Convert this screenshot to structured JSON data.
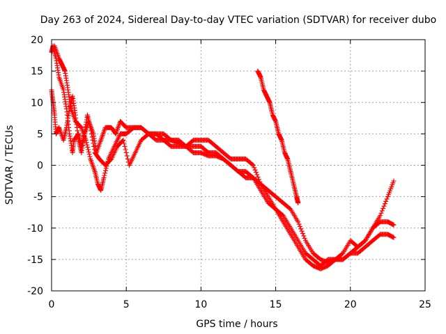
{
  "chart_data": {
    "type": "scatter",
    "title": "Day 263 of 2024, Sidereal Day-to-day VTEC variation (SDTVAR) for receiver dubo",
    "xlabel": "GPS time / hours",
    "ylabel": "SDTVAR / TECUs",
    "xlim": [
      0,
      25
    ],
    "ylim": [
      -20,
      20
    ],
    "xticks": [
      0,
      5,
      10,
      15,
      20,
      25
    ],
    "yticks": [
      -20,
      -15,
      -10,
      -5,
      0,
      5,
      10,
      15,
      20
    ],
    "grid": true,
    "marker": "plus",
    "color": "#ff0000",
    "series": [
      {
        "name": "arc-main",
        "points": [
          [
            0.0,
            18
          ],
          [
            0.1,
            19
          ],
          [
            0.3,
            17
          ],
          [
            0.5,
            14
          ],
          [
            0.8,
            12
          ],
          [
            1.0,
            9
          ],
          [
            1.2,
            5
          ],
          [
            1.4,
            2
          ],
          [
            1.5,
            4
          ],
          [
            1.8,
            5
          ],
          [
            2.0,
            3
          ],
          [
            2.2,
            5
          ],
          [
            2.5,
            7
          ],
          [
            2.8,
            5
          ],
          [
            3.0,
            2
          ],
          [
            3.3,
            4
          ],
          [
            3.6,
            6
          ],
          [
            4.0,
            6
          ],
          [
            4.3,
            5
          ],
          [
            4.6,
            7
          ],
          [
            5.0,
            6
          ],
          [
            5.5,
            6
          ],
          [
            6.0,
            6
          ],
          [
            6.5,
            5
          ],
          [
            7.0,
            5
          ],
          [
            7.5,
            5
          ],
          [
            8.0,
            4
          ],
          [
            8.5,
            4
          ],
          [
            9.0,
            3
          ],
          [
            9.5,
            3
          ],
          [
            10.0,
            3
          ],
          [
            10.5,
            2
          ],
          [
            11.0,
            2
          ],
          [
            11.5,
            1
          ],
          [
            12.0,
            0
          ],
          [
            12.5,
            -1
          ],
          [
            13.0,
            -1
          ],
          [
            13.5,
            -2
          ],
          [
            14.0,
            -4
          ],
          [
            14.5,
            -6
          ],
          [
            15.0,
            -7
          ],
          [
            15.5,
            -8
          ],
          [
            16.0,
            -10
          ],
          [
            16.5,
            -12
          ],
          [
            17.0,
            -14
          ],
          [
            17.5,
            -15
          ],
          [
            18.0,
            -16
          ],
          [
            18.5,
            -15
          ],
          [
            19.0,
            -15
          ],
          [
            19.5,
            -15
          ],
          [
            20.0,
            -14
          ],
          [
            20.5,
            -13
          ],
          [
            21.0,
            -12
          ],
          [
            21.5,
            -10
          ],
          [
            22.0,
            -9
          ],
          [
            22.5,
            -9
          ],
          [
            22.9,
            -9.5
          ]
        ]
      },
      {
        "name": "arc-upper",
        "points": [
          [
            0.2,
            19
          ],
          [
            0.5,
            17
          ],
          [
            0.7,
            16
          ],
          [
            0.9,
            15
          ],
          [
            1.1,
            12
          ],
          [
            1.3,
            9
          ],
          [
            1.6,
            7
          ],
          [
            2.0,
            6
          ],
          [
            2.3,
            4
          ],
          [
            2.6,
            1
          ],
          [
            2.9,
            -1
          ],
          [
            3.1,
            -3
          ],
          [
            3.3,
            -4
          ],
          [
            3.5,
            -2
          ],
          [
            3.8,
            1
          ],
          [
            4.2,
            3
          ],
          [
            4.6,
            5
          ],
          [
            5.0,
            5
          ],
          [
            5.5,
            6
          ],
          [
            6.0,
            6
          ],
          [
            6.5,
            5
          ],
          [
            7.0,
            5
          ],
          [
            7.5,
            4
          ],
          [
            8.0,
            4
          ],
          [
            8.5,
            3.5
          ],
          [
            9.0,
            3
          ],
          [
            9.5,
            4
          ],
          [
            10.0,
            4
          ],
          [
            10.5,
            4
          ],
          [
            11.0,
            3
          ],
          [
            11.5,
            2
          ],
          [
            12.0,
            1
          ],
          [
            12.5,
            1
          ],
          [
            13.0,
            1
          ],
          [
            13.5,
            0
          ],
          [
            14.0,
            -3
          ],
          [
            14.5,
            -4
          ],
          [
            15.0,
            -5
          ],
          [
            15.5,
            -6
          ],
          [
            16.0,
            -7
          ],
          [
            16.5,
            -9
          ],
          [
            17.0,
            -12
          ],
          [
            17.5,
            -14
          ],
          [
            18.0,
            -15
          ],
          [
            18.5,
            -15.5
          ],
          [
            19.0,
            -15
          ],
          [
            19.5,
            -14
          ],
          [
            20.0,
            -12
          ],
          [
            20.5,
            -13
          ],
          [
            21.0,
            -12
          ],
          [
            21.5,
            -10
          ],
          [
            22.0,
            -8
          ],
          [
            22.5,
            -5
          ],
          [
            22.9,
            -2.5
          ]
        ]
      },
      {
        "name": "arc-lower",
        "points": [
          [
            0.0,
            12
          ],
          [
            0.1,
            10
          ],
          [
            0.2,
            8
          ],
          [
            0.3,
            5
          ],
          [
            0.5,
            6
          ],
          [
            0.8,
            4
          ],
          [
            1.0,
            6
          ],
          [
            1.2,
            9
          ],
          [
            1.4,
            11
          ],
          [
            1.6,
            8
          ],
          [
            1.8,
            4
          ],
          [
            2.0,
            2
          ],
          [
            2.2,
            5
          ],
          [
            2.4,
            8
          ],
          [
            2.6,
            6
          ],
          [
            2.9,
            2
          ],
          [
            3.2,
            1
          ],
          [
            3.6,
            0
          ],
          [
            4.0,
            1
          ],
          [
            4.4,
            3
          ],
          [
            4.8,
            4
          ],
          [
            5.2,
            0
          ],
          [
            5.6,
            2
          ],
          [
            6.0,
            4
          ],
          [
            6.5,
            5
          ],
          [
            7.0,
            4
          ],
          [
            7.5,
            4
          ],
          [
            8.0,
            3
          ],
          [
            8.5,
            3
          ],
          [
            9.0,
            3
          ],
          [
            9.5,
            2
          ],
          [
            10.0,
            2
          ],
          [
            10.5,
            1.5
          ],
          [
            11.0,
            1.5
          ],
          [
            11.5,
            1
          ],
          [
            12.0,
            0
          ],
          [
            12.5,
            -1
          ],
          [
            13.0,
            -2
          ],
          [
            13.5,
            -2
          ],
          [
            14.0,
            -3
          ],
          [
            14.5,
            -5
          ],
          [
            15.0,
            -7
          ],
          [
            15.5,
            -9
          ],
          [
            16.0,
            -11
          ],
          [
            16.5,
            -13
          ],
          [
            17.0,
            -15
          ],
          [
            17.5,
            -16
          ],
          [
            18.0,
            -16.5
          ],
          [
            18.5,
            -16
          ],
          [
            19.0,
            -15
          ],
          [
            19.5,
            -15
          ],
          [
            20.0,
            -14
          ],
          [
            20.5,
            -14
          ],
          [
            21.0,
            -13
          ],
          [
            21.5,
            -12
          ],
          [
            22.0,
            -11
          ],
          [
            22.5,
            -11
          ],
          [
            22.9,
            -11.5
          ]
        ]
      },
      {
        "name": "arc-steep",
        "points": [
          [
            13.8,
            15
          ],
          [
            14.0,
            14
          ],
          [
            14.2,
            12
          ],
          [
            14.4,
            11
          ],
          [
            14.6,
            10
          ],
          [
            14.8,
            8
          ],
          [
            15.0,
            7
          ],
          [
            15.2,
            5
          ],
          [
            15.4,
            4
          ],
          [
            15.6,
            2
          ],
          [
            15.8,
            1
          ],
          [
            16.0,
            -1
          ],
          [
            16.2,
            -3
          ],
          [
            16.4,
            -5
          ],
          [
            16.5,
            -6
          ]
        ]
      }
    ]
  }
}
